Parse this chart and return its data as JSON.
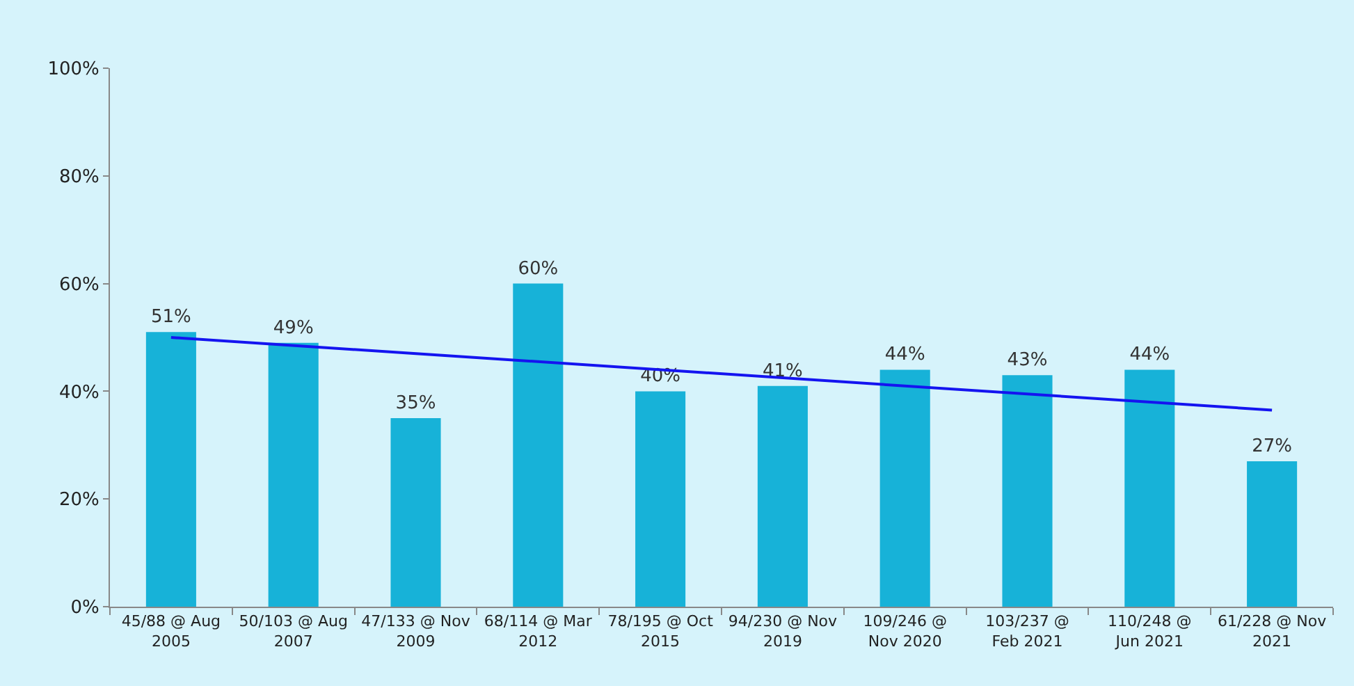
{
  "chart_data": {
    "type": "bar",
    "categories": [
      "45/88 @ Aug 2005",
      "50/103 @ Aug 2007",
      "47/133 @ Nov 2009",
      "68/114 @ Mar 2012",
      "78/195 @ Oct 2015",
      "94/230 @ Nov 2019",
      "109/246 @ Nov 2020",
      "103/237 @ Feb 2021",
      "110/248 @ Jun 2021",
      "61/228 @ Nov 2021"
    ],
    "series": [
      {
        "color": "#17b2d8",
        "values": [
          51,
          49,
          35,
          60,
          40,
          41,
          44,
          43,
          44,
          27
        ],
        "value_labels": [
          "51%",
          "49%",
          "35%",
          "60%",
          "40%",
          "41%",
          "44%",
          "43%",
          "44%",
          "27%"
        ]
      },
      {
        "type": "line",
        "color": "#1414f0",
        "x": [
          "45/88 @ Aug 2005",
          "61/228 @ Nov 2021"
        ],
        "values": [
          50,
          36.5
        ],
        "marker": "none",
        "line_style": "solid"
      }
    ],
    "ylim": [
      0,
      100
    ],
    "yticks": [
      {
        "value": 0,
        "label": "0%"
      },
      {
        "value": 20,
        "label": "20%"
      },
      {
        "value": 40,
        "label": "40%"
      },
      {
        "value": 60,
        "label": "60%"
      },
      {
        "value": 80,
        "label": "80%"
      },
      {
        "value": 100,
        "label": "100%"
      }
    ]
  }
}
